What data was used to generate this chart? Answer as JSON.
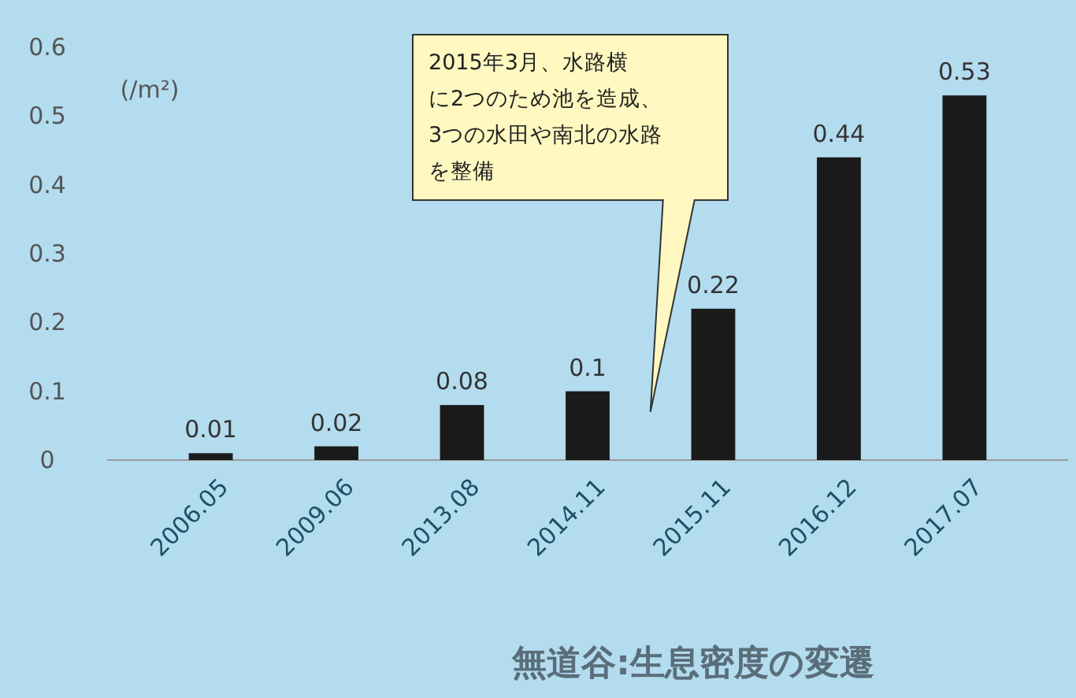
{
  "chart_data": {
    "type": "bar",
    "title": "無道谷:生息密度の変遷",
    "ylabel": "(/m²)",
    "categories": [
      "2006.05",
      "2009.06",
      "2013.08",
      "2014.11",
      "2015.11",
      "2016.12",
      "2017.07"
    ],
    "values": [
      0.01,
      0.02,
      0.08,
      0.1,
      0.22,
      0.44,
      0.53
    ],
    "color": "#1a1a1a",
    "ylim": [
      0,
      0.6
    ],
    "yticks": [
      0,
      0.1,
      0.2,
      0.3,
      0.4,
      0.5,
      0.6
    ],
    "data_labels": true,
    "grid": false,
    "annotations": [
      "2015年3月、水路横に2つのため池を造成、3つの水田や南北の水路を整備"
    ]
  }
}
